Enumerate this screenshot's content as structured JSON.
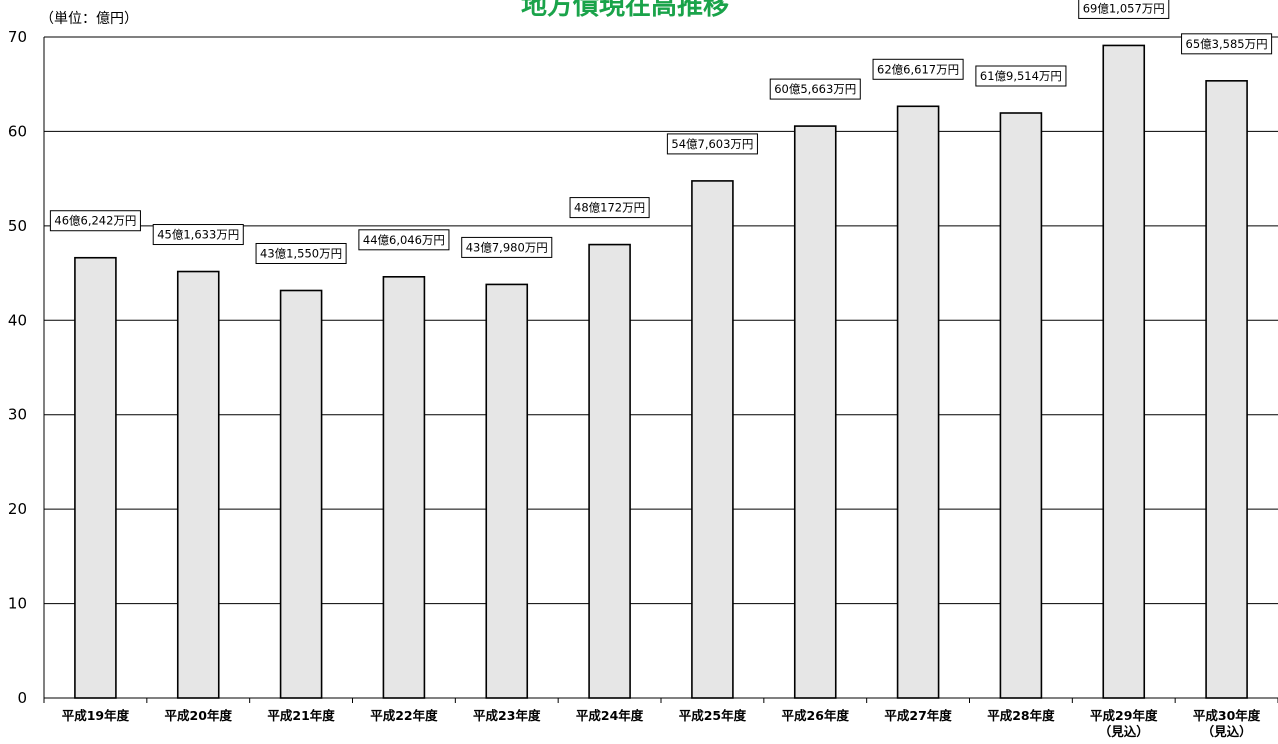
{
  "chart_data": {
    "type": "bar",
    "title": "地方債現在高推移",
    "unit_label": "（単位：億円）",
    "ylim": [
      0,
      70
    ],
    "yticks": [
      0,
      10,
      20,
      30,
      40,
      50,
      60,
      70
    ],
    "grid": true,
    "bar_color": "#e6e6e6",
    "bar_stroke": "#000000",
    "title_color": "#1aa34a",
    "categories": [
      {
        "line1": "平成19年度",
        "line2": ""
      },
      {
        "line1": "平成20年度",
        "line2": ""
      },
      {
        "line1": "平成21年度",
        "line2": ""
      },
      {
        "line1": "平成22年度",
        "line2": ""
      },
      {
        "line1": "平成23年度",
        "line2": ""
      },
      {
        "line1": "平成24年度",
        "line2": ""
      },
      {
        "line1": "平成25年度",
        "line2": ""
      },
      {
        "line1": "平成26年度",
        "line2": ""
      },
      {
        "line1": "平成27年度",
        "line2": ""
      },
      {
        "line1": "平成28年度",
        "line2": ""
      },
      {
        "line1": "平成29年度",
        "line2": "（見込）"
      },
      {
        "line1": "平成30年度",
        "line2": "（見込）"
      }
    ],
    "values": [
      46.6242,
      45.1633,
      43.155,
      44.6046,
      43.798,
      48.0172,
      54.7603,
      60.5663,
      62.6617,
      61.9514,
      69.1057,
      65.3585
    ],
    "data_labels": [
      "46億6,242万円",
      "45億1,633万円",
      "43億1,550万円",
      "44億6,046万円",
      "43億7,980万円",
      "48億172万円",
      "54億7,603万円",
      "60億5,663万円",
      "62億6,617万円",
      "61億9,514万円",
      "69億1,057万円",
      "65億3,585万円"
    ]
  }
}
